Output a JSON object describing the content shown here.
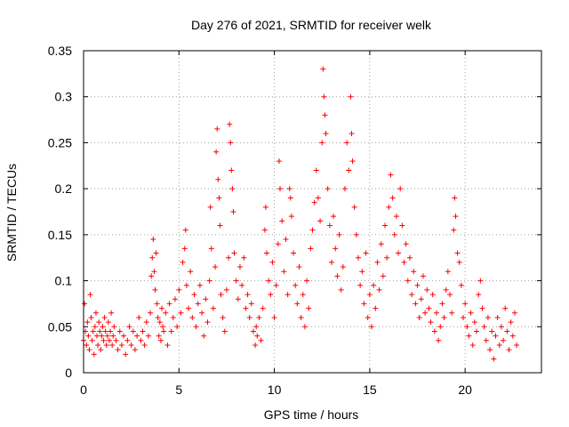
{
  "chart_data": {
    "type": "scatter",
    "title": "Day 276 of 2021, SRMTID for receiver welk",
    "xlabel": "GPS time / hours",
    "ylabel": "SRMTID / TECUs",
    "xlim": [
      0,
      24
    ],
    "ylim": [
      0,
      0.35
    ],
    "xticks": [
      0,
      5,
      10,
      15,
      20
    ],
    "yticks": [
      0,
      0.05,
      0.1,
      0.15,
      0.2,
      0.25,
      0.3,
      0.35
    ],
    "xtick_labels": [
      "0",
      "5",
      "10",
      "15",
      "20"
    ],
    "ytick_labels": [
      "0",
      "0.05",
      "0.1",
      "0.15",
      "0.2",
      "0.25",
      "0.3",
      "0.35"
    ],
    "grid": true,
    "marker": "+",
    "series": [
      {
        "name": "SRMTID",
        "color": "#ff0000",
        "points": [
          [
            0.0,
            0.035
          ],
          [
            0.05,
            0.075
          ],
          [
            0.1,
            0.045
          ],
          [
            0.15,
            0.03
          ],
          [
            0.2,
            0.055
          ],
          [
            0.25,
            0.04
          ],
          [
            0.3,
            0.025
          ],
          [
            0.35,
            0.085
          ],
          [
            0.4,
            0.06
          ],
          [
            0.45,
            0.035
          ],
          [
            0.5,
            0.045
          ],
          [
            0.55,
            0.02
          ],
          [
            0.6,
            0.05
          ],
          [
            0.65,
            0.065
          ],
          [
            0.7,
            0.04
          ],
          [
            0.75,
            0.03
          ],
          [
            0.8,
            0.055
          ],
          [
            0.85,
            0.045
          ],
          [
            0.9,
            0.025
          ],
          [
            0.95,
            0.04
          ],
          [
            1.0,
            0.05
          ],
          [
            1.05,
            0.035
          ],
          [
            1.1,
            0.06
          ],
          [
            1.15,
            0.045
          ],
          [
            1.2,
            0.03
          ],
          [
            1.25,
            0.04
          ],
          [
            1.3,
            0.055
          ],
          [
            1.35,
            0.035
          ],
          [
            1.4,
            0.045
          ],
          [
            1.45,
            0.065
          ],
          [
            1.5,
            0.03
          ],
          [
            1.55,
            0.04
          ],
          [
            1.6,
            0.05
          ],
          [
            1.7,
            0.035
          ],
          [
            1.8,
            0.025
          ],
          [
            1.9,
            0.045
          ],
          [
            2.0,
            0.03
          ],
          [
            2.1,
            0.04
          ],
          [
            2.2,
            0.02
          ],
          [
            2.3,
            0.035
          ],
          [
            2.4,
            0.05
          ],
          [
            2.5,
            0.03
          ],
          [
            2.6,
            0.045
          ],
          [
            2.7,
            0.025
          ],
          [
            2.8,
            0.04
          ],
          [
            2.9,
            0.06
          ],
          [
            3.0,
            0.035
          ],
          [
            3.1,
            0.045
          ],
          [
            3.2,
            0.03
          ],
          [
            3.3,
            0.055
          ],
          [
            3.4,
            0.04
          ],
          [
            3.5,
            0.065
          ],
          [
            3.55,
            0.105
          ],
          [
            3.6,
            0.125
          ],
          [
            3.65,
            0.145
          ],
          [
            3.7,
            0.11
          ],
          [
            3.75,
            0.09
          ],
          [
            3.8,
            0.13
          ],
          [
            3.85,
            0.075
          ],
          [
            3.9,
            0.06
          ],
          [
            3.95,
            0.04
          ],
          [
            4.0,
            0.055
          ],
          [
            4.05,
            0.035
          ],
          [
            4.1,
            0.07
          ],
          [
            4.15,
            0.05
          ],
          [
            4.2,
            0.045
          ],
          [
            4.3,
            0.065
          ],
          [
            4.4,
            0.03
          ],
          [
            4.5,
            0.075
          ],
          [
            4.6,
            0.045
          ],
          [
            4.7,
            0.06
          ],
          [
            4.8,
            0.08
          ],
          [
            4.9,
            0.05
          ],
          [
            5.0,
            0.09
          ],
          [
            5.1,
            0.065
          ],
          [
            5.2,
            0.12
          ],
          [
            5.3,
            0.135
          ],
          [
            5.35,
            0.155
          ],
          [
            5.4,
            0.095
          ],
          [
            5.5,
            0.07
          ],
          [
            5.6,
            0.11
          ],
          [
            5.7,
            0.06
          ],
          [
            5.8,
            0.085
          ],
          [
            5.9,
            0.05
          ],
          [
            6.0,
            0.075
          ],
          [
            6.1,
            0.095
          ],
          [
            6.2,
            0.065
          ],
          [
            6.3,
            0.04
          ],
          [
            6.4,
            0.08
          ],
          [
            6.5,
            0.055
          ],
          [
            6.6,
            0.1
          ],
          [
            6.65,
            0.18
          ],
          [
            6.7,
            0.135
          ],
          [
            6.8,
            0.07
          ],
          [
            6.9,
            0.115
          ],
          [
            6.95,
            0.24
          ],
          [
            7.0,
            0.265
          ],
          [
            7.05,
            0.21
          ],
          [
            7.1,
            0.19
          ],
          [
            7.15,
            0.16
          ],
          [
            7.2,
            0.085
          ],
          [
            7.3,
            0.06
          ],
          [
            7.4,
            0.045
          ],
          [
            7.5,
            0.09
          ],
          [
            7.6,
            0.125
          ],
          [
            7.65,
            0.27
          ],
          [
            7.7,
            0.25
          ],
          [
            7.75,
            0.22
          ],
          [
            7.8,
            0.2
          ],
          [
            7.85,
            0.175
          ],
          [
            7.9,
            0.13
          ],
          [
            8.0,
            0.1
          ],
          [
            8.1,
            0.08
          ],
          [
            8.2,
            0.115
          ],
          [
            8.3,
            0.095
          ],
          [
            8.4,
            0.125
          ],
          [
            8.5,
            0.07
          ],
          [
            8.6,
            0.085
          ],
          [
            8.7,
            0.06
          ],
          [
            8.8,
            0.075
          ],
          [
            8.9,
            0.045
          ],
          [
            9.0,
            0.03
          ],
          [
            9.05,
            0.05
          ],
          [
            9.1,
            0.04
          ],
          [
            9.2,
            0.06
          ],
          [
            9.3,
            0.035
          ],
          [
            9.4,
            0.07
          ],
          [
            9.5,
            0.155
          ],
          [
            9.55,
            0.18
          ],
          [
            9.6,
            0.13
          ],
          [
            9.7,
            0.1
          ],
          [
            9.8,
            0.085
          ],
          [
            9.9,
            0.12
          ],
          [
            10.0,
            0.06
          ],
          [
            10.1,
            0.095
          ],
          [
            10.2,
            0.14
          ],
          [
            10.25,
            0.23
          ],
          [
            10.3,
            0.2
          ],
          [
            10.4,
            0.165
          ],
          [
            10.5,
            0.11
          ],
          [
            10.6,
            0.145
          ],
          [
            10.7,
            0.085
          ],
          [
            10.8,
            0.2
          ],
          [
            10.85,
            0.19
          ],
          [
            10.9,
            0.17
          ],
          [
            11.0,
            0.13
          ],
          [
            11.1,
            0.095
          ],
          [
            11.2,
            0.075
          ],
          [
            11.3,
            0.115
          ],
          [
            11.4,
            0.06
          ],
          [
            11.5,
            0.085
          ],
          [
            11.6,
            0.05
          ],
          [
            11.7,
            0.1
          ],
          [
            11.8,
            0.07
          ],
          [
            11.9,
            0.135
          ],
          [
            12.0,
            0.155
          ],
          [
            12.1,
            0.185
          ],
          [
            12.2,
            0.22
          ],
          [
            12.3,
            0.19
          ],
          [
            12.4,
            0.165
          ],
          [
            12.5,
            0.25
          ],
          [
            12.55,
            0.33
          ],
          [
            12.6,
            0.3
          ],
          [
            12.65,
            0.28
          ],
          [
            12.7,
            0.26
          ],
          [
            12.8,
            0.2
          ],
          [
            12.9,
            0.16
          ],
          [
            13.0,
            0.12
          ],
          [
            13.1,
            0.17
          ],
          [
            13.2,
            0.135
          ],
          [
            13.3,
            0.105
          ],
          [
            13.4,
            0.15
          ],
          [
            13.5,
            0.09
          ],
          [
            13.6,
            0.115
          ],
          [
            13.7,
            0.2
          ],
          [
            13.8,
            0.25
          ],
          [
            13.9,
            0.22
          ],
          [
            14.0,
            0.3
          ],
          [
            14.05,
            0.26
          ],
          [
            14.1,
            0.23
          ],
          [
            14.2,
            0.18
          ],
          [
            14.3,
            0.15
          ],
          [
            14.4,
            0.125
          ],
          [
            14.5,
            0.095
          ],
          [
            14.6,
            0.11
          ],
          [
            14.7,
            0.075
          ],
          [
            14.8,
            0.13
          ],
          [
            14.9,
            0.06
          ],
          [
            15.0,
            0.085
          ],
          [
            15.1,
            0.05
          ],
          [
            15.2,
            0.095
          ],
          [
            15.3,
            0.07
          ],
          [
            15.4,
            0.12
          ],
          [
            15.5,
            0.09
          ],
          [
            15.6,
            0.14
          ],
          [
            15.7,
            0.105
          ],
          [
            15.8,
            0.16
          ],
          [
            15.9,
            0.125
          ],
          [
            16.0,
            0.18
          ],
          [
            16.1,
            0.215
          ],
          [
            16.2,
            0.19
          ],
          [
            16.3,
            0.15
          ],
          [
            16.4,
            0.17
          ],
          [
            16.5,
            0.13
          ],
          [
            16.6,
            0.2
          ],
          [
            16.7,
            0.16
          ],
          [
            16.8,
            0.12
          ],
          [
            16.9,
            0.14
          ],
          [
            17.0,
            0.1
          ],
          [
            17.1,
            0.125
          ],
          [
            17.2,
            0.085
          ],
          [
            17.3,
            0.11
          ],
          [
            17.4,
            0.075
          ],
          [
            17.5,
            0.095
          ],
          [
            17.6,
            0.06
          ],
          [
            17.7,
            0.08
          ],
          [
            17.8,
            0.105
          ],
          [
            17.9,
            0.065
          ],
          [
            18.0,
            0.09
          ],
          [
            18.1,
            0.07
          ],
          [
            18.2,
            0.055
          ],
          [
            18.3,
            0.085
          ],
          [
            18.4,
            0.045
          ],
          [
            18.5,
            0.065
          ],
          [
            18.6,
            0.035
          ],
          [
            18.7,
            0.05
          ],
          [
            18.8,
            0.075
          ],
          [
            18.9,
            0.06
          ],
          [
            19.0,
            0.09
          ],
          [
            19.1,
            0.11
          ],
          [
            19.2,
            0.085
          ],
          [
            19.3,
            0.065
          ],
          [
            19.4,
            0.155
          ],
          [
            19.45,
            0.19
          ],
          [
            19.5,
            0.17
          ],
          [
            19.6,
            0.13
          ],
          [
            19.7,
            0.12
          ],
          [
            19.8,
            0.095
          ],
          [
            19.9,
            0.06
          ],
          [
            20.0,
            0.075
          ],
          [
            20.1,
            0.05
          ],
          [
            20.2,
            0.04
          ],
          [
            20.3,
            0.065
          ],
          [
            20.4,
            0.03
          ],
          [
            20.5,
            0.055
          ],
          [
            20.6,
            0.045
          ],
          [
            20.7,
            0.085
          ],
          [
            20.8,
            0.1
          ],
          [
            20.9,
            0.07
          ],
          [
            21.0,
            0.05
          ],
          [
            21.1,
            0.035
          ],
          [
            21.2,
            0.06
          ],
          [
            21.3,
            0.025
          ],
          [
            21.4,
            0.045
          ],
          [
            21.5,
            0.015
          ],
          [
            21.6,
            0.04
          ],
          [
            21.7,
            0.06
          ],
          [
            21.8,
            0.03
          ],
          [
            21.9,
            0.05
          ],
          [
            22.0,
            0.035
          ],
          [
            22.1,
            0.07
          ],
          [
            22.2,
            0.045
          ],
          [
            22.3,
            0.025
          ],
          [
            22.4,
            0.055
          ],
          [
            22.5,
            0.04
          ],
          [
            22.6,
            0.065
          ],
          [
            22.7,
            0.03
          ]
        ]
      }
    ]
  }
}
